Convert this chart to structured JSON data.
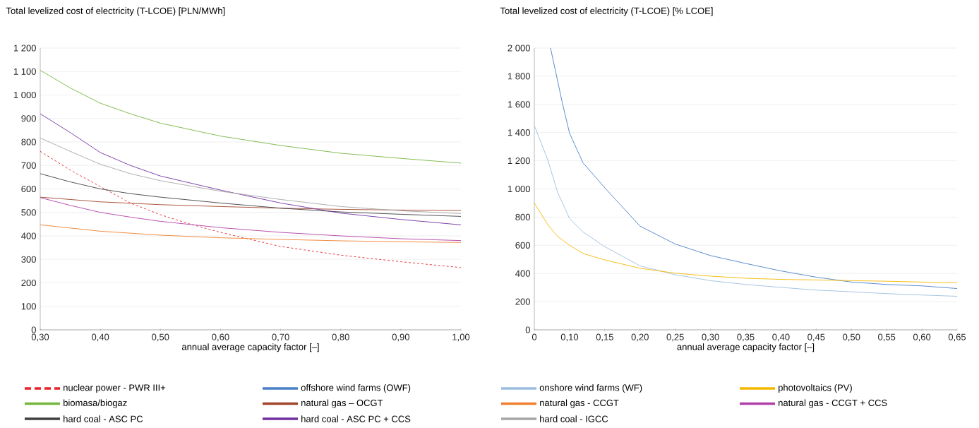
{
  "chart_data": [
    {
      "type": "line",
      "title": "Total levelized cost of electricity (T-LCOE) [PLN/MWh]",
      "xlabel": "annual average capacity factor [–]",
      "xlim": [
        0.3,
        1.0
      ],
      "xticks": [
        {
          "value": 0.3,
          "label": "0,30"
        },
        {
          "value": 0.4,
          "label": "0,40"
        },
        {
          "value": 0.5,
          "label": "0,50"
        },
        {
          "value": 0.6,
          "label": "0,60"
        },
        {
          "value": 0.7,
          "label": "0,70"
        },
        {
          "value": 0.8,
          "label": "0,80"
        },
        {
          "value": 0.9,
          "label": "0,90"
        },
        {
          "value": 1.0,
          "label": "1,00"
        }
      ],
      "ylim": [
        0,
        1200
      ],
      "yticks": [
        0,
        100,
        200,
        300,
        400,
        500,
        600,
        700,
        800,
        900,
        {
          "value": 1000,
          "label": "1 000"
        },
        {
          "value": 1100,
          "label": "1 100"
        },
        {
          "value": 1200,
          "label": "1 200"
        }
      ],
      "grid": "y",
      "legend": "bottom",
      "marker": "none",
      "series": [
        {
          "name": "nuclear power - PWR III+",
          "color": "#e8242a",
          "line_style": "dashed",
          "x": [
            0.3,
            0.35,
            0.4,
            0.45,
            0.5,
            0.55,
            0.6,
            0.7,
            0.8,
            0.9,
            1.0
          ],
          "values": [
            760,
            680,
            610,
            540,
            490,
            450,
            415,
            355,
            318,
            290,
            265
          ]
        },
        {
          "name": "biomasa/biogaz",
          "color": "#76b63f",
          "line_style": "solid",
          "x": [
            0.3,
            0.35,
            0.4,
            0.45,
            0.5,
            0.6,
            0.7,
            0.8,
            0.9,
            1.0
          ],
          "values": [
            1105,
            1030,
            965,
            920,
            880,
            825,
            785,
            752,
            730,
            710
          ]
        },
        {
          "name": "natural gas – OCGT",
          "color": "#a0452a",
          "line_style": "solid",
          "x": [
            0.3,
            0.4,
            0.5,
            0.6,
            0.7,
            0.8,
            0.9,
            1.0
          ],
          "values": [
            565,
            545,
            533,
            525,
            518,
            513,
            510,
            508
          ]
        },
        {
          "name": "natural gas - CCGT",
          "color": "#f08030",
          "line_style": "solid",
          "x": [
            0.3,
            0.4,
            0.5,
            0.6,
            0.7,
            0.8,
            0.9,
            1.0
          ],
          "values": [
            447,
            420,
            403,
            392,
            385,
            379,
            375,
            372
          ]
        },
        {
          "name": "natural gas - CCGT + CCS",
          "color": "#b040a8",
          "line_style": "solid",
          "x": [
            0.3,
            0.35,
            0.4,
            0.45,
            0.5,
            0.6,
            0.7,
            0.8,
            0.9,
            1.0
          ],
          "values": [
            563,
            530,
            500,
            480,
            462,
            435,
            415,
            400,
            388,
            380
          ]
        },
        {
          "name": "hard coal - ASC PC",
          "color": "#404040",
          "line_style": "solid",
          "x": [
            0.3,
            0.35,
            0.4,
            0.45,
            0.5,
            0.6,
            0.7,
            0.8,
            0.9,
            1.0
          ],
          "values": [
            665,
            630,
            600,
            580,
            565,
            540,
            518,
            502,
            492,
            483
          ]
        },
        {
          "name": "hard coal - ASC PC + CCS",
          "color": "#7030a0",
          "line_style": "solid",
          "x": [
            0.3,
            0.35,
            0.4,
            0.45,
            0.5,
            0.6,
            0.7,
            0.8,
            0.9,
            1.0
          ],
          "values": [
            920,
            840,
            755,
            700,
            655,
            595,
            540,
            497,
            470,
            447
          ]
        },
        {
          "name": "hard coal - IGCC",
          "color": "#a6a6a6",
          "line_style": "solid",
          "x": [
            0.3,
            0.35,
            0.4,
            0.45,
            0.5,
            0.6,
            0.7,
            0.8,
            0.9,
            1.0
          ],
          "values": [
            817,
            760,
            705,
            665,
            635,
            590,
            555,
            525,
            507,
            495
          ]
        }
      ]
    },
    {
      "type": "line",
      "title": "Total levelized cost of electricity (T-LCOE) [% LCOE]",
      "xlabel": "annual average capacity factor [–]",
      "xlim": [
        0.05,
        0.65
      ],
      "xticks": [
        {
          "value": 0.05,
          "label": "0"
        },
        {
          "value": 0.1,
          "label": "0,10"
        },
        {
          "value": 0.15,
          "label": "0,15"
        },
        {
          "value": 0.2,
          "label": "0,20"
        },
        {
          "value": 0.25,
          "label": "0,25"
        },
        {
          "value": 0.3,
          "label": "0,30"
        },
        {
          "value": 0.35,
          "label": "0,35"
        },
        {
          "value": 0.4,
          "label": "0,40"
        },
        {
          "value": 0.45,
          "label": "0,45"
        },
        {
          "value": 0.5,
          "label": "0,50"
        },
        {
          "value": 0.55,
          "label": "0,55"
        },
        {
          "value": 0.6,
          "label": "0,60"
        },
        {
          "value": 0.65,
          "label": "0,65"
        }
      ],
      "ylim": [
        0,
        2000
      ],
      "yticks": [
        0,
        200,
        400,
        600,
        800,
        {
          "value": 1000,
          "label": "1 000"
        },
        {
          "value": 1200,
          "label": "1 200"
        },
        {
          "value": 1400,
          "label": "1 400"
        },
        {
          "value": 1600,
          "label": "1 600"
        },
        {
          "value": 1800,
          "label": "1 800"
        },
        {
          "value": 2000,
          "label": "2 000"
        }
      ],
      "grid": "y",
      "legend": "bottom",
      "marker": "none",
      "series": [
        {
          "name": "offshore wind farms (OWF)",
          "color": "#4a80c8",
          "line_style": "solid",
          "x": [
            0.073,
            0.09,
            0.1,
            0.119,
            0.15,
            0.2,
            0.25,
            0.3,
            0.35,
            0.4,
            0.45,
            0.5,
            0.55,
            0.6,
            0.65
          ],
          "values": [
            2000,
            1605,
            1395,
            1186,
            1008,
            736,
            609,
            527,
            471,
            418,
            374,
            339,
            322,
            312,
            293
          ]
        },
        {
          "name": "onshore wind farms (WF)",
          "color": "#9dbde0",
          "line_style": "solid",
          "x": [
            0.05,
            0.069,
            0.083,
            0.1,
            0.119,
            0.15,
            0.2,
            0.25,
            0.3,
            0.35,
            0.4,
            0.45,
            0.5,
            0.55,
            0.6,
            0.65
          ],
          "values": [
            1450,
            1207,
            977,
            789,
            695,
            590,
            454,
            391,
            349,
            322,
            301,
            282,
            270,
            257,
            247,
            238
          ]
        },
        {
          "name": "photovoltaics (PV)",
          "color": "#f5b800",
          "line_style": "solid",
          "x": [
            0.05,
            0.069,
            0.083,
            0.1,
            0.119,
            0.15,
            0.2,
            0.25,
            0.3,
            0.35,
            0.4,
            0.45,
            0.5,
            0.55,
            0.6,
            0.65
          ],
          "values": [
            900,
            747,
            663,
            600,
            542,
            496,
            437,
            402,
            381,
            366,
            358,
            354,
            349,
            345,
            339,
            333
          ]
        }
      ]
    }
  ]
}
